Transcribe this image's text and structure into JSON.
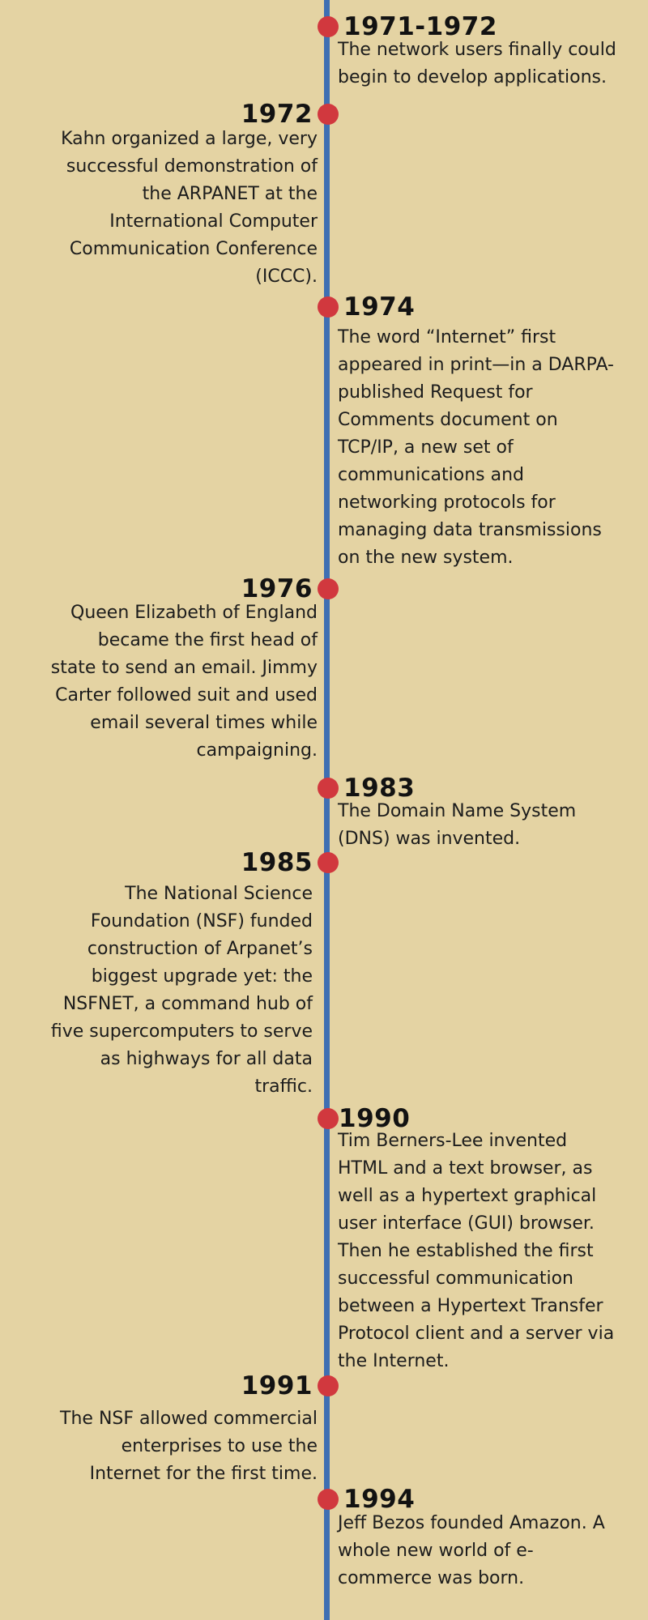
{
  "events": [
    {
      "year": "1971-1972",
      "text": "The network users finally could begin to develop applications."
    },
    {
      "year": "1972",
      "text": "Kahn organized a large, very successful demonstration of the ARPANET at the International Computer Communication Conference (ICCC)."
    },
    {
      "year": "1974",
      "text": "The word “Internet” first appeared in print—in a DARPA-published Request for Comments document on TCP/IP, a new set of communications and networking protocols for managing data transmissions on the new system."
    },
    {
      "year": "1976",
      "text": "Queen Elizabeth of England became the first head of state to send an email. Jimmy Carter followed suit and used email several times while campaigning."
    },
    {
      "year": "1983",
      "text": "The Domain Name System (DNS) was invented."
    },
    {
      "year": "1985",
      "text": "The National Science Foundation (NSF) funded construction of Arpanet’s biggest upgrade yet: the NSFNET, a command hub of five supercomputers to serve as highways for all data traffic."
    },
    {
      "year": "1990",
      "text": "Tim Berners-Lee invented HTML and a text browser, as well as a hypertext graphical user interface (GUI) browser. Then he established the first successful communication between a Hypertext Transfer Protocol client and a server via the Internet."
    },
    {
      "year": "1991",
      "text": "The NSF allowed commercial enterprises to use the Internet for the first time."
    },
    {
      "year": "1994",
      "text": "Jeff Bezos founded Amazon. A whole new world of e-commerce was born."
    }
  ],
  "colors": {
    "background": "#e4d3a3",
    "axis": "#3e6fb3",
    "dot": "#d1383e"
  }
}
